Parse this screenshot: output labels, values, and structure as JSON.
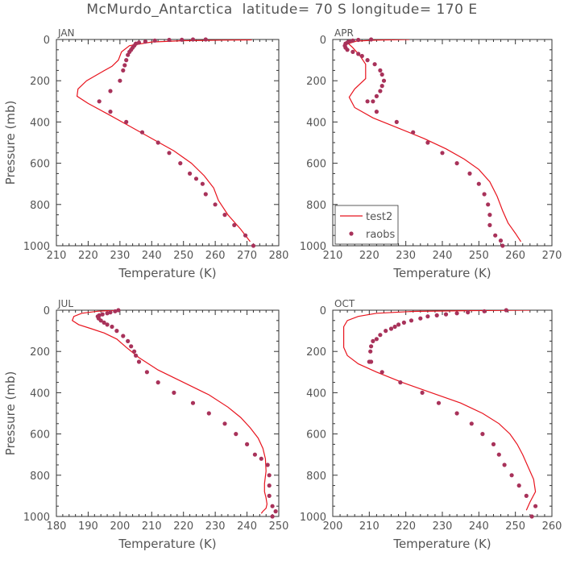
{
  "title": "McMurdo_Antarctica  latitude= 70 S longitude= 170 E",
  "colors": {
    "model_line": "#e8141e",
    "obs_points": "#a8325a",
    "axes": "#333333",
    "text": "#555555"
  },
  "legend": {
    "placement": "bottom-left of APR panel",
    "entries": [
      "test2",
      "raobs"
    ]
  },
  "chart_data": [
    {
      "type": "line+scatter",
      "panel_label": "JAN",
      "xlabel": "Temperature (K)",
      "ylabel": "Pressure (mb)",
      "xlim": [
        210,
        280
      ],
      "xticks": [
        210,
        220,
        230,
        240,
        250,
        260,
        270,
        280
      ],
      "ylim": [
        0,
        1000
      ],
      "yticks": [
        0,
        200,
        400,
        600,
        800,
        1000
      ],
      "y_inverted": true,
      "series": [
        {
          "name": "test2",
          "kind": "line",
          "x": [
            271.5,
            262.0,
            250.0,
            240.0,
            233.0,
            230.5,
            229.5,
            227.5,
            224.0,
            219.5,
            216.8,
            216.5,
            220.0,
            226.0,
            233.0,
            240.0,
            247.0,
            252.5,
            256.5,
            259.5,
            261.0,
            264.0,
            268.0,
            271.0
          ],
          "y": [
            2,
            3,
            6,
            12,
            30,
            60,
            100,
            130,
            160,
            200,
            240,
            275,
            310,
            360,
            420,
            480,
            540,
            600,
            660,
            720,
            780,
            850,
            920,
            980
          ]
        },
        {
          "name": "raobs",
          "kind": "scatter",
          "x": [
            257.0,
            253.0,
            249.5,
            245.5,
            241.0,
            238.0,
            236.0,
            235.0,
            234.5,
            234.0,
            233.5,
            233.0,
            232.5,
            232.0,
            231.5,
            231.0,
            230.0,
            227.0,
            223.5,
            227.0,
            232.0,
            237.0,
            242.0,
            245.5,
            249.0,
            252.0,
            254.0,
            256.0,
            257.0,
            260.0,
            263.0,
            266.0,
            269.5,
            272.0
          ],
          "y": [
            0,
            0,
            1,
            2,
            5,
            10,
            15,
            20,
            30,
            40,
            50,
            60,
            75,
            100,
            125,
            150,
            200,
            250,
            300,
            350,
            400,
            450,
            500,
            550,
            600,
            650,
            675,
            700,
            750,
            800,
            850,
            900,
            950,
            1000
          ]
        }
      ]
    },
    {
      "type": "line+scatter",
      "panel_label": "APR",
      "xlabel": "Temperature (K)",
      "ylabel": "",
      "xlim": [
        210,
        270
      ],
      "xticks": [
        210,
        220,
        230,
        240,
        250,
        260,
        270
      ],
      "ylim": [
        0,
        1000
      ],
      "yticks": [
        0,
        200,
        400,
        600,
        800,
        1000
      ],
      "y_inverted": true,
      "series": [
        {
          "name": "test2",
          "kind": "line",
          "x": [
            231.0,
            222.0,
            216.5,
            214.3,
            215.5,
            217.5,
            219.0,
            219.0,
            216.0,
            214.5,
            216.0,
            221.0,
            228.0,
            235.0,
            241.0,
            246.0,
            250.0,
            253.0,
            255.0,
            256.5,
            258.0,
            260.0,
            261.5
          ],
          "y": [
            0,
            3,
            8,
            20,
            40,
            80,
            120,
            190,
            240,
            280,
            330,
            380,
            430,
            480,
            530,
            580,
            630,
            690,
            760,
            830,
            890,
            940,
            980
          ]
        },
        {
          "name": "raobs",
          "kind": "scatter",
          "x": [
            220.5,
            217.0,
            215.5,
            214.5,
            214.0,
            213.5,
            213.3,
            213.5,
            214.0,
            215.5,
            217.0,
            218.0,
            219.5,
            221.5,
            223.0,
            223.5,
            224.0,
            223.5,
            223.0,
            222.0,
            221.0,
            219.5,
            222.0,
            227.5,
            232.0,
            236.0,
            240.0,
            244.0,
            247.5,
            250.0,
            251.5,
            252.5,
            253.0,
            253.0,
            254.5,
            256.0,
            256.5
          ],
          "y": [
            0,
            2,
            5,
            10,
            15,
            20,
            30,
            40,
            50,
            60,
            70,
            80,
            100,
            120,
            150,
            170,
            200,
            225,
            250,
            275,
            300,
            300,
            350,
            400,
            450,
            500,
            550,
            600,
            650,
            700,
            750,
            800,
            850,
            900,
            950,
            975,
            1000
          ]
        }
      ]
    },
    {
      "type": "line+scatter",
      "panel_label": "JUL",
      "xlabel": "Temperature (K)",
      "ylabel": "Pressure (mb)",
      "xlim": [
        180,
        250
      ],
      "xticks": [
        180,
        190,
        200,
        210,
        220,
        230,
        240,
        250
      ],
      "ylim": [
        0,
        1000
      ],
      "yticks": [
        0,
        200,
        400,
        600,
        800,
        1000
      ],
      "y_inverted": true,
      "series": [
        {
          "name": "test2",
          "kind": "line",
          "x": [
            199.0,
            193.0,
            188.0,
            185.5,
            185.0,
            187.0,
            191.0,
            195.0,
            199.0,
            202.0,
            206.0,
            212.0,
            220.0,
            228.0,
            234.0,
            238.0,
            241.0,
            243.5,
            245.0,
            245.8,
            246.0,
            245.5,
            245.5,
            246.0,
            246.3,
            246.0,
            245.0,
            244.5
          ],
          "y": [
            0,
            5,
            15,
            30,
            50,
            70,
            90,
            110,
            140,
            180,
            230,
            290,
            350,
            410,
            470,
            520,
            570,
            620,
            670,
            720,
            780,
            840,
            880,
            910,
            940,
            960,
            975,
            985
          ]
        },
        {
          "name": "raobs",
          "kind": "scatter",
          "x": [
            199.5,
            198.5,
            197.0,
            196.0,
            194.5,
            193.5,
            193.0,
            193.3,
            194.0,
            195.0,
            196.0,
            197.5,
            199.0,
            201.0,
            202.5,
            203.5,
            204.5,
            205.0,
            206.0,
            208.5,
            212.0,
            217.0,
            223.0,
            228.0,
            233.0,
            236.5,
            240.0,
            242.5,
            244.5,
            246.5,
            247.0,
            247.0,
            247.0,
            248.0,
            249.0,
            248.0
          ],
          "y": [
            0,
            5,
            10,
            15,
            20,
            25,
            30,
            40,
            50,
            60,
            70,
            80,
            100,
            125,
            150,
            175,
            200,
            220,
            250,
            300,
            350,
            400,
            450,
            500,
            550,
            600,
            650,
            700,
            720,
            750,
            800,
            850,
            900,
            950,
            975,
            1000
          ]
        }
      ]
    },
    {
      "type": "line+scatter",
      "panel_label": "OCT",
      "xlabel": "Temperature (K)",
      "ylabel": "",
      "xlim": [
        200,
        260
      ],
      "xticks": [
        200,
        210,
        220,
        230,
        240,
        250,
        260
      ],
      "ylim": [
        0,
        1000
      ],
      "yticks": [
        0,
        200,
        400,
        600,
        800,
        1000
      ],
      "y_inverted": true,
      "series": [
        {
          "name": "test2",
          "kind": "line",
          "x": [
            254.0,
            238.0,
            222.0,
            212.0,
            207.0,
            204.0,
            203.0,
            203.0,
            203.0,
            204.0,
            207.0,
            212.0,
            219.0,
            227.0,
            235.0,
            241.0,
            245.5,
            248.5,
            250.5,
            252.0,
            253.5,
            255.0,
            255.5,
            254.0,
            253.0
          ],
          "y": [
            0,
            2,
            6,
            15,
            30,
            50,
            80,
            120,
            180,
            220,
            260,
            300,
            350,
            400,
            450,
            500,
            550,
            600,
            650,
            700,
            760,
            820,
            880,
            930,
            970
          ]
        },
        {
          "name": "raobs",
          "kind": "scatter",
          "x": [
            247.5,
            241.5,
            237.0,
            234.0,
            231.0,
            228.5,
            226.0,
            224.0,
            221.5,
            219.5,
            218.0,
            217.0,
            216.0,
            214.5,
            213.0,
            212.0,
            211.0,
            210.5,
            210.3,
            210.0,
            210.5,
            213.5,
            218.5,
            224.5,
            229.0,
            234.0,
            238.0,
            241.0,
            244.0,
            245.5,
            247.0,
            249.0,
            251.0,
            253.0,
            255.5,
            254.5
          ],
          "y": [
            0,
            5,
            10,
            15,
            20,
            25,
            30,
            40,
            50,
            60,
            70,
            80,
            90,
            100,
            120,
            140,
            150,
            175,
            200,
            250,
            250,
            300,
            350,
            400,
            450,
            500,
            550,
            600,
            650,
            700,
            750,
            800,
            850,
            900,
            950,
            1000
          ]
        }
      ]
    }
  ]
}
